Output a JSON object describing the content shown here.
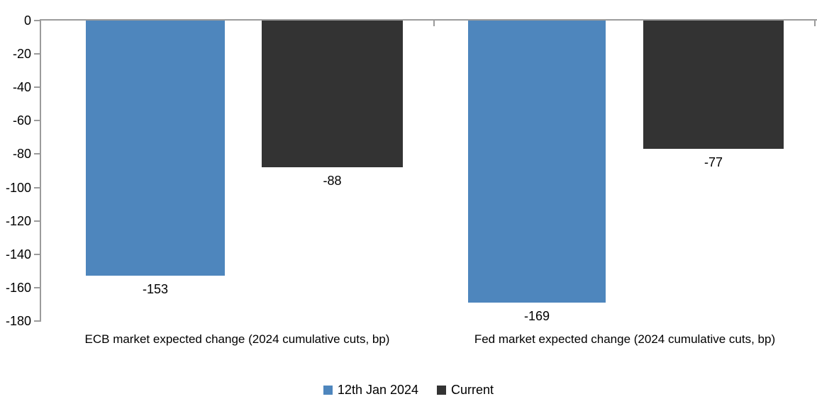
{
  "chart_data": {
    "type": "bar",
    "categories": [
      "ECB market expected change (2024 cumulative cuts, bp)",
      "Fed market expected change (2024 cumulative cuts, bp)"
    ],
    "series": [
      {
        "name": "12th Jan 2024",
        "color": "#4E86BD",
        "values": [
          -153,
          -169
        ],
        "labels": [
          "-153",
          "-169"
        ]
      },
      {
        "name": "Current",
        "color": "#333333",
        "values": [
          -88,
          -77
        ],
        "labels": [
          "-88",
          "-77"
        ]
      }
    ],
    "ylim": [
      -180,
      0
    ],
    "yticks": [
      0,
      -20,
      -40,
      -60,
      -80,
      -100,
      -120,
      -140,
      -160,
      -180
    ],
    "axis_color": "#9B9B9B",
    "grid": false,
    "legend_position": "bottom"
  }
}
